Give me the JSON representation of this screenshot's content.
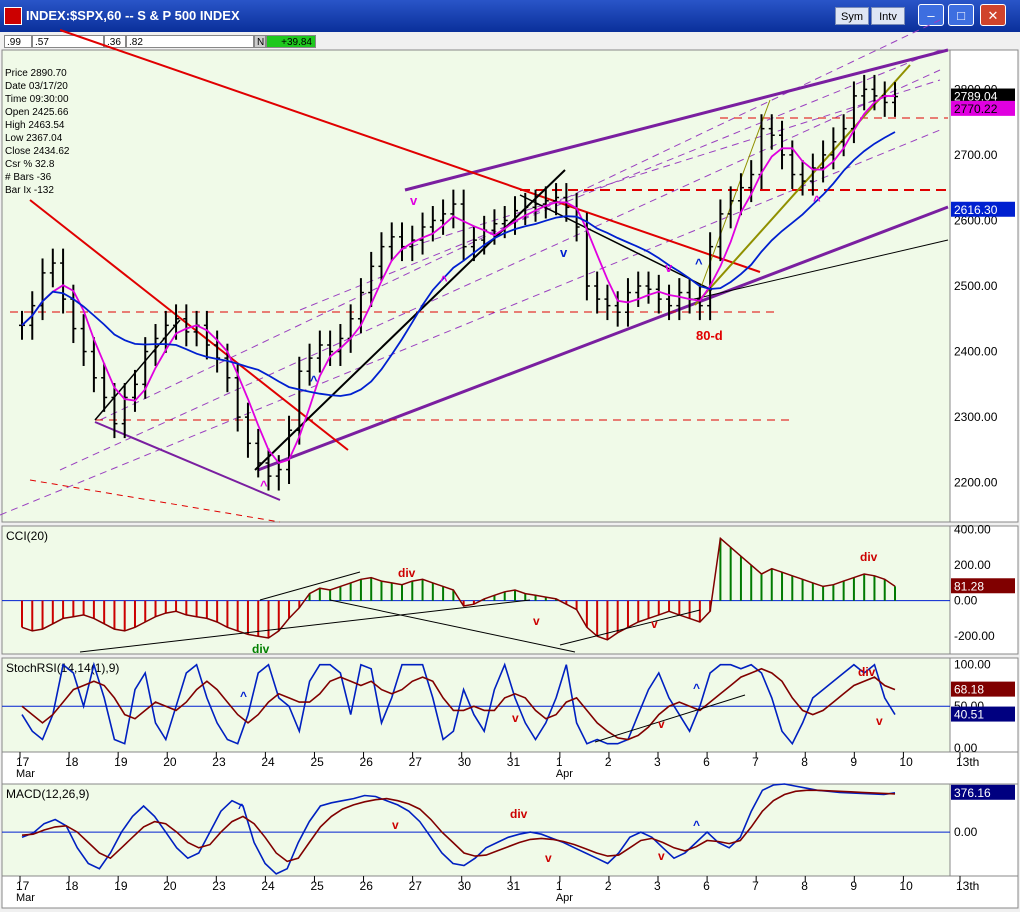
{
  "window": {
    "title": "INDEX:$SPX,60 -- S & P 500 INDEX",
    "buttons": [
      "Sym",
      "Intv"
    ]
  },
  "quote_bar": {
    "cells": [
      ".99",
      ".57",
      ".36",
      ".82"
    ],
    "flag": "N",
    "change": "+39.84"
  },
  "info_panel": [
    {
      "label": "Price",
      "value": "2890.70"
    },
    {
      "label": "Date",
      "value": "03/17/20"
    },
    {
      "label": "Time",
      "value": "09:30:00"
    },
    {
      "label": "Open",
      "value": "2425.66"
    },
    {
      "label": "High",
      "value": "2463.54"
    },
    {
      "label": "Low",
      "value": "2367.04"
    },
    {
      "label": "Close",
      "value": "2434.62"
    },
    {
      "label": "Csr %",
      "value": "32.8"
    },
    {
      "label": "# Bars",
      "value": "-36"
    },
    {
      "label": "Bar Ix",
      "value": "-132"
    }
  ],
  "colors": {
    "background": "#f0fae8",
    "bars": "#000000",
    "ma_fast": "#e000e0",
    "ma_slow": "#0020d0",
    "channel": "#7a1fa0",
    "red_line": "#e00000",
    "up_bar": "#007a00",
    "down_bar": "#cc0000",
    "olive": "#909000"
  },
  "chart_data": [
    {
      "type": "ohlc",
      "panel": "price",
      "x_labels": [
        "17",
        "18",
        "19",
        "20",
        "23",
        "24",
        "25",
        "26",
        "27",
        "30",
        "31",
        "1",
        "2",
        "3",
        "6",
        "7",
        "8",
        "9",
        "10",
        "13th"
      ],
      "month_labels": [
        {
          "at": "17",
          "text": "Mar"
        },
        {
          "at": "1",
          "text": "Apr"
        }
      ],
      "y_ticks": [
        "2200.00",
        "2300.00",
        "2400.00",
        "2500.00",
        "2600.00",
        "2700.00",
        "2800.00"
      ],
      "ylim": [
        2140,
        2860
      ],
      "last_labels": [
        {
          "text": "2789.04",
          "value": 2789.04,
          "bg": "#000000",
          "fg": "#ffffff"
        },
        {
          "text": "2770.22",
          "value": 2770.22,
          "bg": "#e000e0",
          "fg": "#000000"
        },
        {
          "text": "2616.30",
          "value": 2616.3,
          "bg": "#0020d0",
          "fg": "#ffffff"
        }
      ],
      "closes": [
        2440,
        2470,
        2520,
        2535,
        2480,
        2435,
        2400,
        2360,
        2330,
        2290,
        2330,
        2350,
        2400,
        2420,
        2440,
        2450,
        2430,
        2440,
        2410,
        2390,
        2360,
        2300,
        2260,
        2230,
        2210,
        2220,
        2280,
        2370,
        2390,
        2410,
        2400,
        2420,
        2450,
        2490,
        2530,
        2560,
        2575,
        2560,
        2570,
        2590,
        2600,
        2610,
        2625,
        2560,
        2570,
        2585,
        2595,
        2600,
        2615,
        2620,
        2625,
        2630,
        2635,
        2620,
        2590,
        2500,
        2480,
        2470,
        2460,
        2490,
        2500,
        2495,
        2480,
        2470,
        2490,
        2480,
        2470,
        2560,
        2610,
        2630,
        2650,
        2670,
        2740,
        2730,
        2700,
        2670,
        2660,
        2680,
        2700,
        2720,
        2740,
        2790,
        2800,
        2790,
        2780,
        2789
      ],
      "annotations": [
        {
          "text": "v",
          "color": "#e000e0",
          "x": 410,
          "y": 205
        },
        {
          "text": "^",
          "color": "#e000e0",
          "x": 440,
          "y": 285
        },
        {
          "text": "^",
          "color": "#e000e0",
          "x": 260,
          "y": 490
        },
        {
          "text": "^",
          "color": "#0020d0",
          "x": 310,
          "y": 385
        },
        {
          "text": "v",
          "color": "#0020d0",
          "x": 560,
          "y": 257
        },
        {
          "text": "v",
          "color": "#e000e0",
          "x": 665,
          "y": 272
        },
        {
          "text": "^",
          "color": "#0020d0",
          "x": 695,
          "y": 268
        },
        {
          "text": "^",
          "color": "#e000e0",
          "x": 813,
          "y": 205
        },
        {
          "text": "80-d",
          "color": "#e00000",
          "x": 696,
          "y": 340
        }
      ]
    },
    {
      "type": "histogram",
      "panel": "cci",
      "title": "CCI(20)",
      "y_ticks": [
        "400.00",
        "200.00",
        "0.00",
        "-200.00"
      ],
      "ylim": [
        -300,
        420
      ],
      "last_label": {
        "text": "81.28",
        "bg": "#800000",
        "fg": "#ffffff"
      },
      "values": [
        -150,
        -170,
        -160,
        -130,
        -100,
        -90,
        -80,
        -100,
        -130,
        -160,
        -170,
        -150,
        -120,
        -90,
        -70,
        -60,
        -80,
        -90,
        -100,
        -120,
        -150,
        -170,
        -190,
        -200,
        -210,
        -170,
        -100,
        -40,
        40,
        70,
        60,
        80,
        100,
        120,
        130,
        110,
        100,
        90,
        110,
        120,
        100,
        80,
        60,
        -30,
        -20,
        10,
        30,
        50,
        60,
        40,
        30,
        20,
        10,
        -20,
        -50,
        -150,
        -200,
        -220,
        -180,
        -150,
        -120,
        -100,
        -80,
        -60,
        -80,
        -100,
        -120,
        -60,
        350,
        300,
        250,
        200,
        150,
        180,
        160,
        140,
        120,
        100,
        80,
        90,
        110,
        130,
        150,
        140,
        120,
        81
      ],
      "annotations": [
        {
          "text": "div",
          "color": "#cc0000",
          "x": 398,
          "y": 577
        },
        {
          "text": "div",
          "color": "#008000",
          "x": 252,
          "y": 653
        },
        {
          "text": "v",
          "color": "#cc0000",
          "x": 533,
          "y": 625
        },
        {
          "text": "v",
          "color": "#cc0000",
          "x": 651,
          "y": 628
        },
        {
          "text": "div",
          "color": "#cc0000",
          "x": 860,
          "y": 561
        }
      ]
    },
    {
      "type": "line",
      "panel": "stochrsi",
      "title": "StochRSI(14,14(1),9)",
      "y_ticks": [
        "100.00",
        "50.00",
        "0.00"
      ],
      "ylim": [
        -5,
        108
      ],
      "last_labels": [
        {
          "text": "68.18",
          "bg": "#800000",
          "fg": "#ffffff"
        },
        {
          "text": "40.51",
          "bg": "#000080",
          "fg": "#ffffff"
        }
      ],
      "series": [
        {
          "name": "",
          "color": "#0020c0",
          "values": [
            40,
            20,
            10,
            40,
            100,
            90,
            50,
            100,
            60,
            10,
            5,
            70,
            90,
            30,
            10,
            50,
            90,
            100,
            60,
            30,
            10,
            5,
            40,
            90,
            100,
            60,
            50,
            20,
            80,
            100,
            100,
            90,
            40,
            100,
            95,
            30,
            60,
            100,
            100,
            100,
            60,
            10,
            20,
            70,
            40,
            20,
            70,
            100,
            60,
            30,
            10,
            30,
            60,
            100,
            30,
            5,
            10,
            5,
            5,
            10,
            40,
            70,
            90,
            60,
            40,
            20,
            50,
            90,
            100,
            100,
            95,
            100,
            90,
            60,
            20,
            5,
            30,
            60,
            70,
            80,
            90,
            100,
            90,
            100,
            60,
            40
          ]
        },
        {
          "name": "",
          "color": "#800000",
          "values": [
            50,
            40,
            30,
            40,
            55,
            70,
            75,
            80,
            75,
            60,
            40,
            35,
            45,
            55,
            50,
            45,
            55,
            70,
            80,
            70,
            55,
            40,
            30,
            40,
            55,
            65,
            60,
            55,
            55,
            65,
            80,
            85,
            80,
            75,
            80,
            70,
            65,
            70,
            80,
            85,
            80,
            60,
            45,
            45,
            50,
            45,
            45,
            60,
            65,
            60,
            45,
            35,
            40,
            55,
            60,
            45,
            30,
            20,
            12,
            10,
            15,
            25,
            40,
            50,
            55,
            50,
            45,
            55,
            65,
            75,
            85,
            90,
            95,
            90,
            80,
            60,
            45,
            40,
            45,
            55,
            65,
            75,
            80,
            85,
            75,
            70
          ]
        }
      ],
      "annotations": [
        {
          "text": "^",
          "color": "#0020d0",
          "x": 240,
          "y": 700
        },
        {
          "text": "v",
          "color": "#cc0000",
          "x": 512,
          "y": 722
        },
        {
          "text": "v",
          "color": "#cc0000",
          "x": 658,
          "y": 728
        },
        {
          "text": "^",
          "color": "#0020d0",
          "x": 693,
          "y": 692
        },
        {
          "text": "div",
          "color": "#cc0000",
          "x": 858,
          "y": 676
        },
        {
          "text": "v",
          "color": "#cc0000",
          "x": 876,
          "y": 725
        }
      ]
    },
    {
      "type": "line",
      "panel": "macd",
      "title": "MACD(12,26,9)",
      "y_ticks": [
        "0.00"
      ],
      "ylim": [
        -420,
        460
      ],
      "last_labels": [
        {
          "text": "376.16",
          "bg": "#000080",
          "fg": "#ffffff"
        }
      ],
      "series": [
        {
          "name": "",
          "color": "#0020c0",
          "values": [
            -50,
            -10,
            80,
            120,
            60,
            -150,
            -300,
            -350,
            -200,
            0,
            150,
            250,
            150,
            0,
            -150,
            -250,
            -200,
            0,
            200,
            300,
            250,
            -100,
            -300,
            -400,
            -350,
            -100,
            100,
            250,
            280,
            300,
            320,
            350,
            340,
            300,
            260,
            200,
            100,
            -50,
            -200,
            -300,
            -320,
            -250,
            -150,
            -100,
            -50,
            -20,
            0,
            -20,
            -60,
            -100,
            -150,
            -200,
            -250,
            -300,
            -200,
            -50,
            0,
            -50,
            -150,
            -250,
            -200,
            -100,
            0,
            -100,
            -150,
            -50,
            200,
            400,
            450,
            460,
            440,
            420,
            400,
            390,
            380,
            375,
            370,
            365,
            360,
            376
          ]
        },
        {
          "name": "",
          "color": "#800000",
          "values": [
            -30,
            -20,
            20,
            50,
            60,
            0,
            -100,
            -200,
            -250,
            -150,
            -50,
            50,
            100,
            80,
            0,
            -100,
            -150,
            -120,
            0,
            100,
            150,
            80,
            -50,
            -200,
            -280,
            -250,
            -100,
            50,
            150,
            220,
            260,
            290,
            310,
            320,
            300,
            270,
            220,
            120,
            0,
            -100,
            -200,
            -230,
            -220,
            -180,
            -140,
            -100,
            -70,
            -60,
            -70,
            -90,
            -120,
            -160,
            -200,
            -230,
            -220,
            -150,
            -80,
            -60,
            -100,
            -150,
            -180,
            -140,
            -80,
            -90,
            -110,
            -80,
            50,
            200,
            300,
            360,
            390,
            400,
            400,
            395,
            390,
            385,
            380,
            375,
            370,
            365
          ]
        }
      ],
      "annotations": [
        {
          "text": "^",
          "color": "#0020d0",
          "x": 238,
          "y": 812
        },
        {
          "text": "v",
          "color": "#cc0000",
          "x": 392,
          "y": 829
        },
        {
          "text": "div",
          "color": "#cc0000",
          "x": 510,
          "y": 818
        },
        {
          "text": "v",
          "color": "#cc0000",
          "x": 545,
          "y": 862
        },
        {
          "text": "v",
          "color": "#cc0000",
          "x": 658,
          "y": 860
        },
        {
          "text": "^",
          "color": "#0020d0",
          "x": 693,
          "y": 829
        }
      ]
    }
  ]
}
